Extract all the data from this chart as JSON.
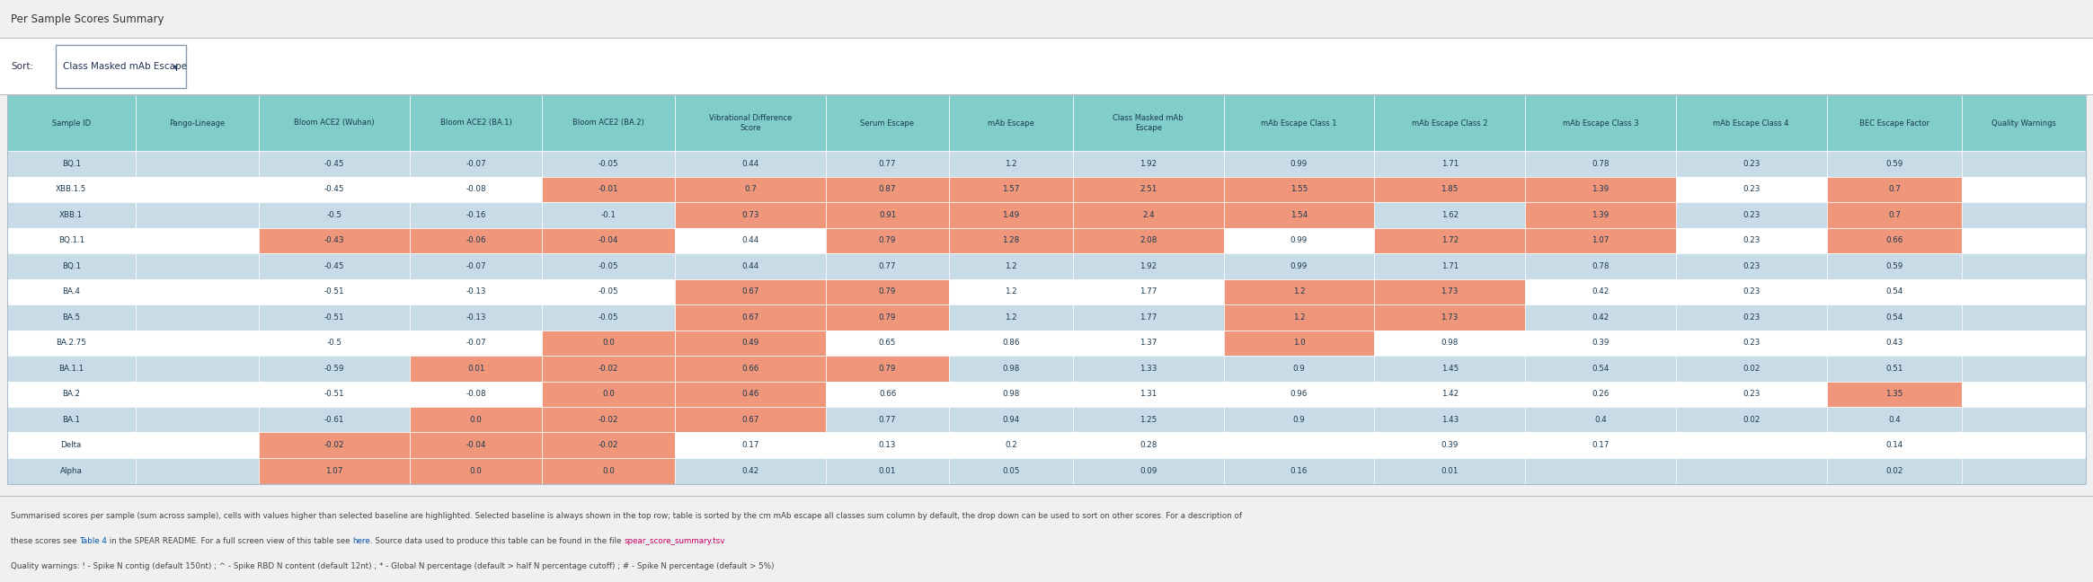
{
  "title": "Per Sample Scores Summary",
  "sort_label": "Sort:",
  "sort_value": "Class Masked mAb Escape",
  "columns": [
    "Sample ID",
    "Pango-Lineage",
    "Bloom ACE2 (Wuhan)",
    "Bloom ACE2 (BA.1)",
    "Bloom ACE2 (BA.2)",
    "Vibrational Difference\nScore",
    "Serum Escape",
    "mAb Escape",
    "Class Masked mAb\nEscape",
    "mAb Escape Class 1",
    "mAb Escape Class 2",
    "mAb Escape Class 3",
    "mAb Escape Class 4",
    "BEC Escape Factor",
    "Quality Warnings"
  ],
  "rows": [
    [
      "BQ.1",
      "",
      "-0.45",
      "-0.07",
      "-0.05",
      "0.44",
      "0.77",
      "1.2",
      "1.92",
      "0.99",
      "1.71",
      "0.78",
      "0.23",
      "0.59",
      ""
    ],
    [
      "XBB.1.5",
      "",
      "-0.45",
      "-0.08",
      "-0.01",
      "0.7",
      "0.87",
      "1.57",
      "2.51",
      "1.55",
      "1.85",
      "1.39",
      "0.23",
      "0.7",
      ""
    ],
    [
      "XBB.1",
      "",
      "-0.5",
      "-0.16",
      "-0.1",
      "0.73",
      "0.91",
      "1.49",
      "2.4",
      "1.54",
      "1.62",
      "1.39",
      "0.23",
      "0.7",
      ""
    ],
    [
      "BQ.1.1",
      "",
      "-0.43",
      "-0.06",
      "-0.04",
      "0.44",
      "0.79",
      "1.28",
      "2.08",
      "0.99",
      "1.72",
      "1.07",
      "0.23",
      "0.66",
      ""
    ],
    [
      "BQ.1",
      "",
      "-0.45",
      "-0.07",
      "-0.05",
      "0.44",
      "0.77",
      "1.2",
      "1.92",
      "0.99",
      "1.71",
      "0.78",
      "0.23",
      "0.59",
      ""
    ],
    [
      "BA.4",
      "",
      "-0.51",
      "-0.13",
      "-0.05",
      "0.67",
      "0.79",
      "1.2",
      "1.77",
      "1.2",
      "1.73",
      "0.42",
      "0.23",
      "0.54",
      ""
    ],
    [
      "BA.5",
      "",
      "-0.51",
      "-0.13",
      "-0.05",
      "0.67",
      "0.79",
      "1.2",
      "1.77",
      "1.2",
      "1.73",
      "0.42",
      "0.23",
      "0.54",
      ""
    ],
    [
      "BA.2.75",
      "",
      "-0.5",
      "-0.07",
      "0.0",
      "0.49",
      "0.65",
      "0.86",
      "1.37",
      "1.0",
      "0.98",
      "0.39",
      "0.23",
      "0.43",
      ""
    ],
    [
      "BA.1.1",
      "",
      "-0.59",
      "0.01",
      "-0.02",
      "0.66",
      "0.79",
      "0.98",
      "1.33",
      "0.9",
      "1.45",
      "0.54",
      "0.02",
      "0.51",
      ""
    ],
    [
      "BA.2",
      "",
      "-0.51",
      "-0.08",
      "0.0",
      "0.46",
      "0.66",
      "0.98",
      "1.31",
      "0.96",
      "1.42",
      "0.26",
      "0.23",
      "1.35",
      ""
    ],
    [
      "BA.1",
      "",
      "-0.61",
      "0.0",
      "-0.02",
      "0.67",
      "0.77",
      "0.94",
      "1.25",
      "0.9",
      "1.43",
      "0.4",
      "0.02",
      "0.4",
      ""
    ],
    [
      "Delta",
      "",
      "-0.02",
      "-0.04",
      "-0.02",
      "0.17",
      "0.13",
      "0.2",
      "0.28",
      "",
      "0.39",
      "0.17",
      "",
      "0.14",
      ""
    ],
    [
      "Alpha",
      "",
      "1.07",
      "0.0",
      "0.0",
      "0.42",
      "0.01",
      "0.05",
      "0.09",
      "0.16",
      "0.01",
      "",
      "",
      "0.02",
      ""
    ]
  ],
  "header_bg": "#80cdc9",
  "header_alt_bg": "#adc8dc",
  "row_even_bg": "#c8dce8",
  "row_odd_bg": "#ffffff",
  "highlight_color": "#f0967a",
  "bg_color": "#f0f0f0",
  "title_color": "#333333",
  "cell_text_color": "#1a3a52",
  "header_text_color": "#1a3a52",
  "border_color": "#bbbbbb",
  "sort_box_border": "#8899aa",
  "footer_text_color": "#444444",
  "link_color": "#0055aa",
  "file_link_color": "#cc0066",
  "footer1": "Summarised scores per sample (sum across sample), cells with values higher than selected baseline are highlighted. Selected baseline is always shown in the top row; table is sorted by the cm mAb escape all classes sum column by default, the drop down can be used to sort on other scores. For a description of",
  "footer2_parts": [
    [
      "these scores see ",
      "#444444"
    ],
    [
      "Table 4",
      "#0055aa"
    ],
    [
      " in the SPEAR README. For a full screen view of this table see ",
      "#444444"
    ],
    [
      "here",
      "#0055aa"
    ],
    [
      ". Source data used to produce this table can be found in the file ",
      "#444444"
    ],
    [
      "spear_score_summary.tsv",
      "#cc0066"
    ]
  ],
  "footer3": "Quality warnings: ! - Spike N contig (default 150nt) ; ^ - Spike RBD N content (default 12nt) ; * - Global N percentage (default > half N percentage cutoff) ; # - Spike N percentage (default > 5%)"
}
